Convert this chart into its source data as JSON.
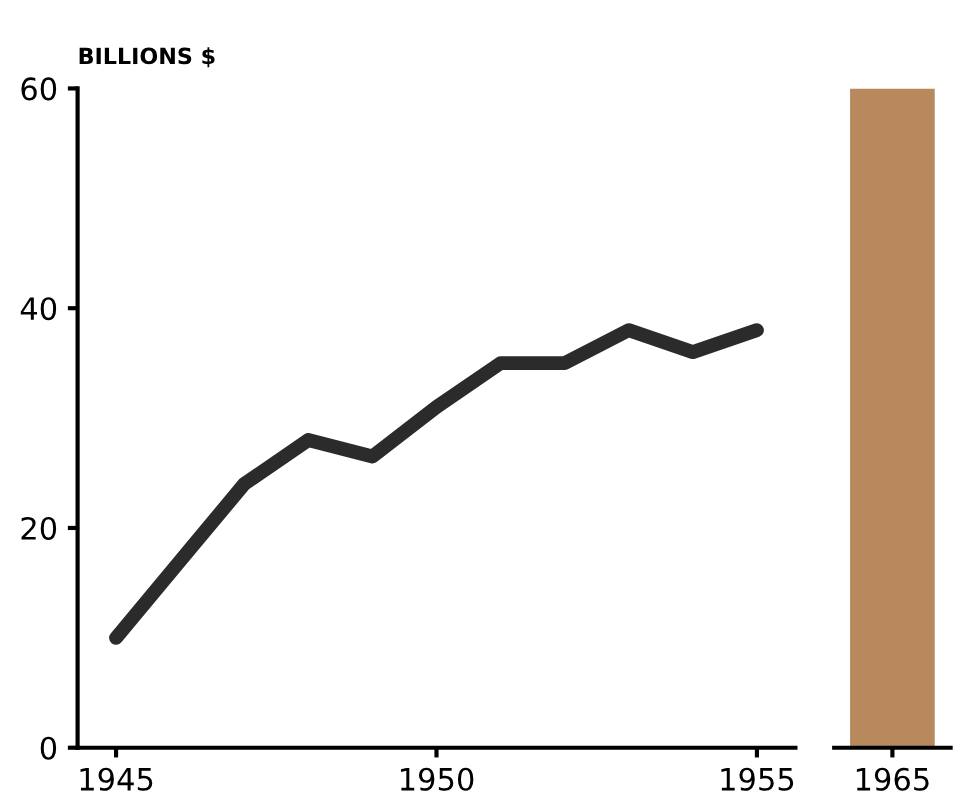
{
  "chart_data": [
    {
      "type": "line",
      "ylabel": "BILLIONS $",
      "x": [
        1945,
        1946,
        1947,
        1948,
        1949,
        1950,
        1951,
        1952,
        1953,
        1954,
        1955
      ],
      "series": [
        {
          "color": "#2b2b2b",
          "values": [
            10,
            17,
            24,
            28,
            26.5,
            31,
            35,
            35,
            38,
            36,
            38
          ]
        }
      ],
      "xlim": [
        1944.4,
        1955.6
      ],
      "ylim": [
        0,
        60
      ],
      "xticks": [
        1945,
        1950,
        1955
      ],
      "yticks": [
        0,
        20,
        40,
        60
      ],
      "grid": false,
      "legend": false
    },
    {
      "type": "bar",
      "categories": [
        "1965"
      ],
      "values": [
        60
      ],
      "color": "#b8895c",
      "ylim": [
        0,
        60
      ],
      "tick_labels": "x",
      "grid": false,
      "legend": false
    }
  ]
}
